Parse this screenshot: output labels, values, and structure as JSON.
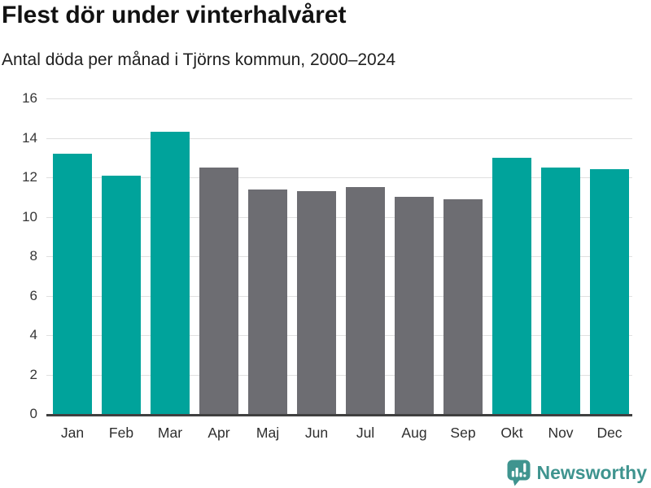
{
  "chart_data": {
    "type": "bar",
    "title": "Flest dör under vinterhalvåret",
    "subtitle": "Antal döda per månad i Tjörns kommun, 2000–2024",
    "categories": [
      "Jan",
      "Feb",
      "Mar",
      "Apr",
      "Maj",
      "Jun",
      "Jul",
      "Aug",
      "Sep",
      "Okt",
      "Nov",
      "Dec"
    ],
    "values": [
      13.2,
      12.1,
      14.3,
      12.5,
      11.4,
      11.3,
      11.5,
      11.0,
      10.9,
      13.0,
      12.5,
      12.4
    ],
    "bar_groups": [
      "winter",
      "winter",
      "winter",
      "summer",
      "summer",
      "summer",
      "summer",
      "summer",
      "summer",
      "winter",
      "winter",
      "winter"
    ],
    "bar_palette": {
      "winter": "#00a39b",
      "summer": "#6d6d72"
    },
    "ylim": [
      0,
      16
    ],
    "yticks": [
      0,
      2,
      4,
      6,
      8,
      10,
      12,
      14,
      16
    ],
    "grid": "horizontal",
    "legend": "none",
    "xlabel": "",
    "ylabel": ""
  },
  "footer": {
    "brand": "Newsworthy",
    "logo_icon": "bar-chart-speech-bubble-icon"
  },
  "colors": {
    "winter_bar": "#00a39b",
    "summer_bar": "#6d6d72",
    "gridline": "#e0e0e0",
    "axis_line": "#404040",
    "title_text": "#121212",
    "tick_text": "#363636",
    "brand_teal": "#3f948f"
  }
}
